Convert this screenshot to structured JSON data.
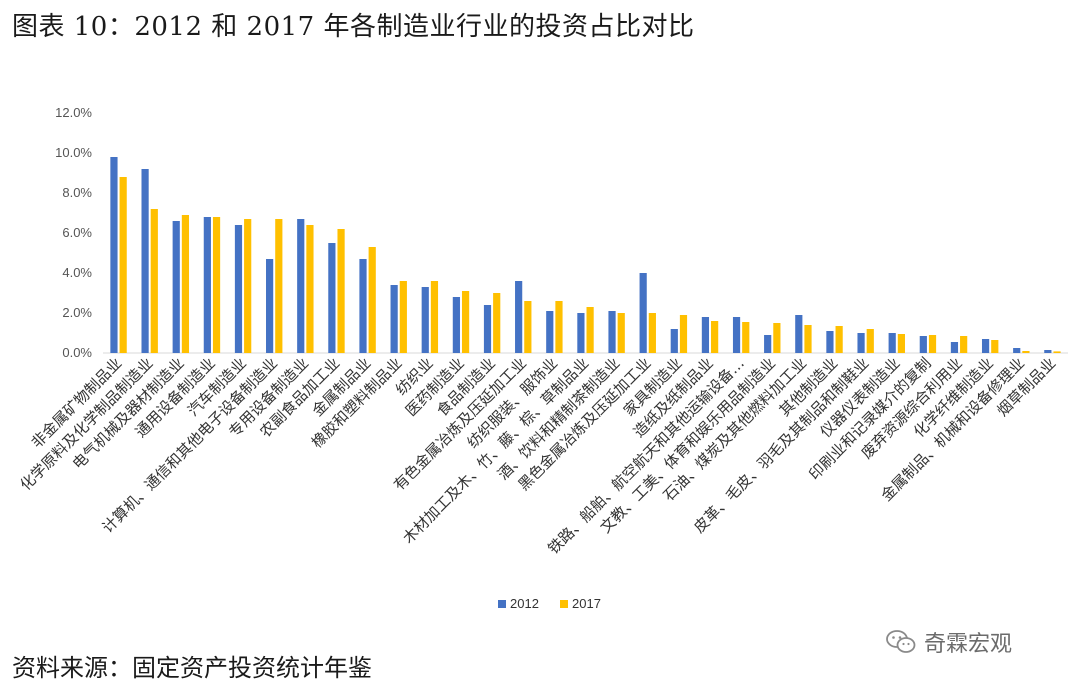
{
  "title": "图表 10：2012 和 2017 年各制造业行业的投资占比对比",
  "source": "资料来源：固定资产投资统计年鉴",
  "watermark": {
    "text": "奇霖宏观",
    "icon": "wechat-icon"
  },
  "colors": {
    "s2012": "#4472C4",
    "s2017": "#FFC000",
    "axis": "#d9d9d9",
    "watermark": "#8a8a8a"
  },
  "chart_data": {
    "type": "bar",
    "categories": [
      "非金属矿物制品业",
      "化学原料及化学制品制造业",
      "电气机械及器材制造业",
      "通用设备制造业",
      "汽车制造业",
      "计算机、通信和其他电子设备制造业",
      "专用设备制造业",
      "农副食品加工业",
      "金属制品业",
      "橡胶和塑料制品业",
      "纺织业",
      "医药制造业",
      "食品制造业",
      "有色金属冶炼及压延加工业",
      "纺织服装、服饰业",
      "木材加工及木、竹、藤、棕、草制品业",
      "酒、饮料和精制茶制造业",
      "黑色金属冶炼及压延加工业",
      "家具制造业",
      "造纸及纸制品业",
      "铁路、船舶、航空航天和其他运输设备…",
      "文教、工美、体育和娱乐用品制造业",
      "石油、煤炭及其他燃料加工业",
      "其他制造业",
      "皮革、毛皮、羽毛及其制品和制鞋业",
      "仪器仪表制造业",
      "印刷业和记录媒介的复制",
      "废弃资源综合利用业",
      "化学纤维制造业",
      "金属制品、机械和设备修理业",
      "烟草制品业"
    ],
    "series": [
      {
        "name": "2012",
        "values": [
          9.8,
          9.2,
          6.6,
          6.8,
          6.4,
          4.7,
          6.7,
          5.5,
          4.7,
          3.4,
          3.3,
          2.8,
          2.4,
          3.6,
          2.1,
          2.0,
          2.1,
          4.0,
          1.2,
          1.8,
          1.8,
          0.9,
          1.9,
          1.1,
          1.0,
          1.0,
          0.85,
          0.55,
          0.7,
          0.25,
          0.15
        ]
      },
      {
        "name": "2017",
        "values": [
          8.8,
          7.2,
          6.9,
          6.8,
          6.7,
          6.7,
          6.4,
          6.2,
          5.3,
          3.6,
          3.6,
          3.1,
          3.0,
          2.6,
          2.6,
          2.3,
          2.0,
          2.0,
          1.9,
          1.6,
          1.55,
          1.5,
          1.4,
          1.35,
          1.2,
          0.95,
          0.9,
          0.85,
          0.65,
          0.1,
          0.08
        ]
      }
    ],
    "ylim": [
      0,
      12
    ],
    "yticks": [
      "0.0%",
      "2.0%",
      "4.0%",
      "6.0%",
      "8.0%",
      "10.0%",
      "12.0%"
    ],
    "ytick_values": [
      0,
      2,
      4,
      6,
      8,
      10,
      12
    ],
    "grid": false,
    "legend": "bottom-center",
    "xlabel": "",
    "ylabel": ""
  }
}
